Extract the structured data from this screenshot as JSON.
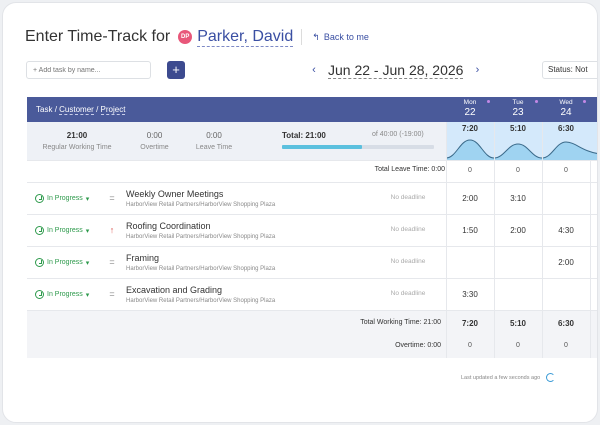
{
  "header": {
    "title": "Enter Time-Track for",
    "avatar_initials": "DP",
    "person_name": "Parker, David",
    "back_label": "Back to me"
  },
  "toolbar": {
    "add_task_placeholder": "+ Add task by name...",
    "add_button": "+",
    "date_range": "Jun 22 - Jun 28, 2026",
    "status_label": "Status: Not"
  },
  "table_header": {
    "task": "Task",
    "customer": "Customer",
    "project": "Project",
    "days": [
      {
        "name": "Mon",
        "date": "22"
      },
      {
        "name": "Tue",
        "date": "23"
      },
      {
        "name": "Wed",
        "date": "24"
      }
    ]
  },
  "summary": {
    "regular_value": "21:00",
    "regular_label": "Regular Working Time",
    "overtime_value": "0:00",
    "overtime_label": "Overtime",
    "leave_value": "0:00",
    "leave_label": "Leave Time",
    "total_label": "Total: 21:00",
    "total_of": "of 40:00 (-19:00)",
    "progress_percent": 52.5,
    "day_totals": [
      "7:20",
      "5:10",
      "6:30"
    ]
  },
  "leave_row": {
    "label": "Total Leave Time: 0:00",
    "values": [
      "0",
      "0",
      "0"
    ]
  },
  "tasks": [
    {
      "status": "In Progress",
      "priority": "=",
      "name": "Weekly Owner Meetings",
      "project": "HarborView Retail Partners/HarborView Shopping Plaza",
      "deadline": "No deadline",
      "hours": [
        "2:00",
        "3:10",
        ""
      ]
    },
    {
      "status": "In Progress",
      "priority": "↑",
      "name": "Roofing Coordination",
      "project": "HarborView Retail Partners/HarborView Shopping Plaza",
      "deadline": "No deadline",
      "hours": [
        "1:50",
        "2:00",
        "4:30"
      ]
    },
    {
      "status": "In Progress",
      "priority": "=",
      "name": "Framing",
      "project": "HarborView Retail Partners/HarborView Shopping Plaza",
      "deadline": "No deadline",
      "hours": [
        "",
        "",
        "2:00"
      ]
    },
    {
      "status": "In Progress",
      "priority": "=",
      "name": "Excavation and Grading",
      "project": "HarborView Retail Partners/HarborView Shopping Plaza",
      "deadline": "No deadline",
      "hours": [
        "3:30",
        "",
        ""
      ]
    }
  ],
  "footer": {
    "working_label": "Total Working Time: 21:00",
    "working_values": [
      "7:20",
      "5:10",
      "6:30"
    ],
    "overtime_label": "Overtime: 0:00",
    "overtime_values": [
      "0",
      "0",
      "0"
    ],
    "updated": "Last updated a few seconds ago"
  },
  "colors": {
    "accent": "#3a4fa3",
    "header_bar": "#4a5a9a",
    "status_green": "#2e9a4c",
    "day_fill": "#d4e9fb",
    "wave": "#5bc0de"
  }
}
